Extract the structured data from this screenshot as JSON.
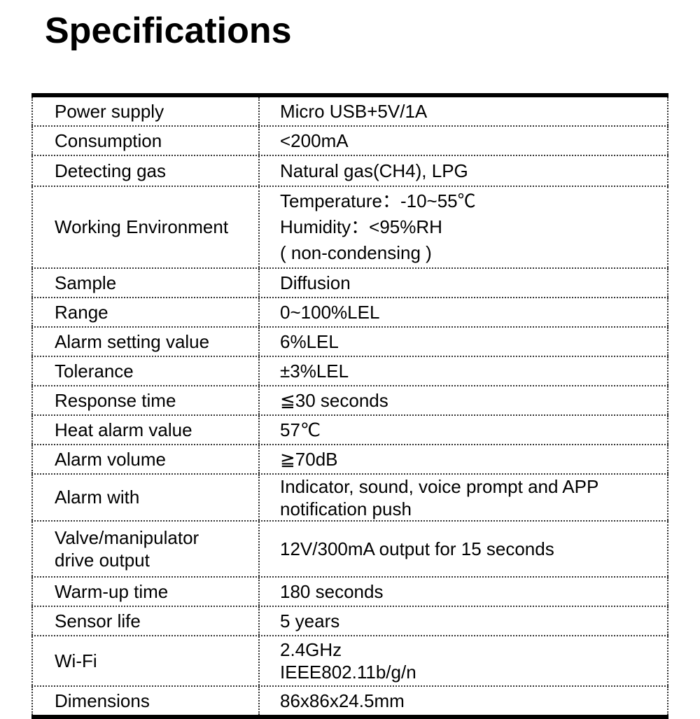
{
  "title": "Specifications",
  "rows": [
    {
      "label": [
        "Power supply"
      ],
      "value": [
        "Micro USB+5V/1A"
      ]
    },
    {
      "label": [
        "Consumption"
      ],
      "value": [
        "<200mA"
      ]
    },
    {
      "label": [
        "Detecting gas"
      ],
      "value": [
        "Natural gas(CH4), LPG"
      ]
    },
    {
      "label": [
        "Working Environment"
      ],
      "value": [
        "Temperature：-10~55℃",
        "Humidity：<95%RH",
        "( non-condensing )"
      ]
    },
    {
      "label": [
        "Sample"
      ],
      "value": [
        "Diffusion"
      ]
    },
    {
      "label": [
        "Range"
      ],
      "value": [
        "0~100%LEL"
      ]
    },
    {
      "label": [
        "Alarm setting value"
      ],
      "value": [
        "6%LEL"
      ]
    },
    {
      "label": [
        "Tolerance"
      ],
      "value": [
        "±3%LEL"
      ]
    },
    {
      "label": [
        "Response time"
      ],
      "value": [
        "≦30 seconds"
      ]
    },
    {
      "label": [
        "Heat alarm value"
      ],
      "value": [
        "57℃"
      ]
    },
    {
      "label": [
        "Alarm volume"
      ],
      "value": [
        "≧70dB"
      ]
    },
    {
      "label": [
        "Alarm with"
      ],
      "value": [
        "Indicator, sound, voice prompt and APP",
        "notification push"
      ]
    },
    {
      "label": [
        "Valve/manipulator",
        "drive output"
      ],
      "value": [
        "12V/300mA output for 15 seconds"
      ]
    },
    {
      "label": [
        "Warm-up time"
      ],
      "value": [
        "180 seconds"
      ]
    },
    {
      "label": [
        "Sensor life"
      ],
      "value": [
        "5 years"
      ]
    },
    {
      "label": [
        "Wi-Fi"
      ],
      "value": [
        "2.4GHz",
        "IEEE802.11b/g/n"
      ]
    },
    {
      "label": [
        "Dimensions"
      ],
      "value": [
        "86x86x24.5mm"
      ]
    }
  ]
}
